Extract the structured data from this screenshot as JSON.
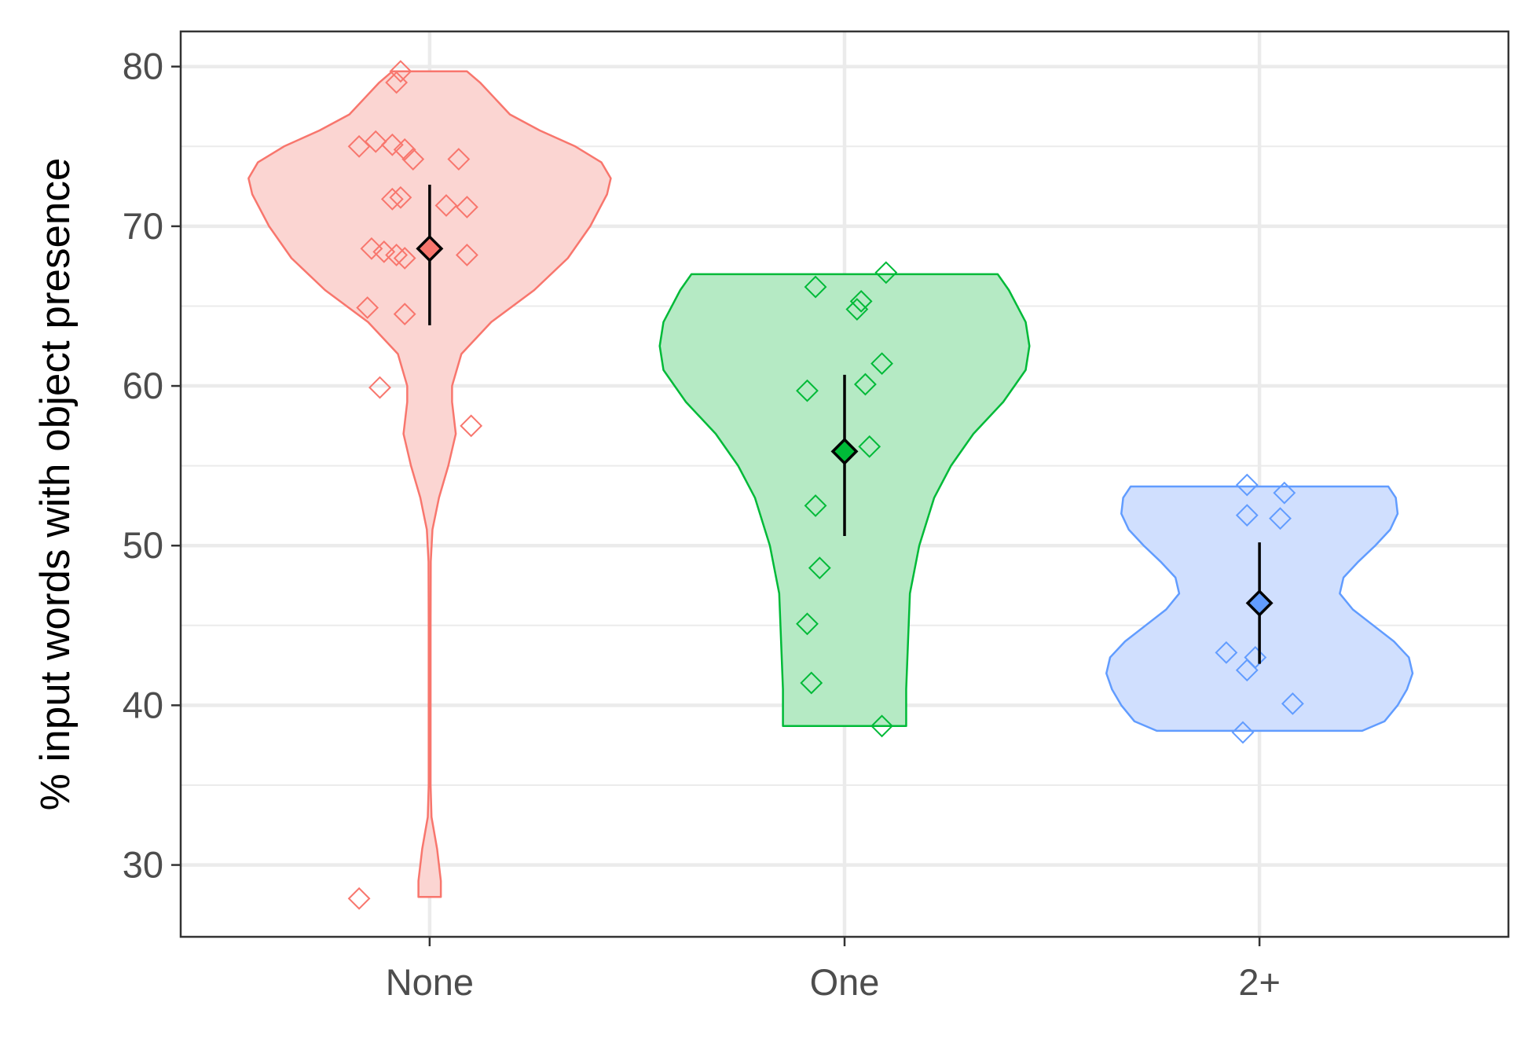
{
  "chart_data": {
    "type": "violin",
    "xlabel": "",
    "ylabel": "% input words with object presence",
    "ylim": [
      25.5,
      82.2
    ],
    "yticks": [
      30,
      40,
      50,
      60,
      70,
      80
    ],
    "categories": [
      "None",
      "One",
      "2+"
    ],
    "grid": true,
    "legend": "none",
    "groups": [
      {
        "category": "None",
        "color": "#F8766D",
        "fill": "#FBD5D2",
        "mean": 68.6,
        "ci": [
          63.8,
          72.6
        ],
        "range": [
          28.0,
          79.7
        ],
        "density": [
          [
            28.0,
            0.06
          ],
          [
            29,
            0.06
          ],
          [
            31,
            0.04
          ],
          [
            33,
            0.01
          ],
          [
            35,
            0.005
          ],
          [
            40,
            0.005
          ],
          [
            45,
            0.005
          ],
          [
            49,
            0.006
          ],
          [
            51,
            0.015
          ],
          [
            53,
            0.05
          ],
          [
            55,
            0.1
          ],
          [
            57,
            0.14
          ],
          [
            59,
            0.12
          ],
          [
            60,
            0.12
          ],
          [
            62,
            0.17
          ],
          [
            64,
            0.33
          ],
          [
            66,
            0.56
          ],
          [
            68,
            0.74
          ],
          [
            70,
            0.86
          ],
          [
            72,
            0.95
          ],
          [
            73,
            0.97
          ],
          [
            74,
            0.92
          ],
          [
            75,
            0.78
          ],
          [
            76,
            0.59
          ],
          [
            77,
            0.43
          ],
          [
            78,
            0.35
          ],
          [
            79,
            0.27
          ],
          [
            79.7,
            0.2
          ]
        ],
        "points": [
          [
            0.93,
            79.7
          ],
          [
            0.92,
            79.0
          ],
          [
            0.87,
            75.3
          ],
          [
            0.83,
            75.0
          ],
          [
            0.91,
            75.1
          ],
          [
            0.94,
            74.8
          ],
          [
            0.96,
            74.2
          ],
          [
            1.07,
            74.2
          ],
          [
            0.93,
            71.8
          ],
          [
            0.91,
            71.7
          ],
          [
            1.04,
            71.3
          ],
          [
            1.09,
            71.2
          ],
          [
            0.86,
            68.6
          ],
          [
            0.89,
            68.4
          ],
          [
            0.92,
            68.2
          ],
          [
            0.94,
            68.0
          ],
          [
            1.09,
            68.2
          ],
          [
            0.85,
            64.9
          ],
          [
            0.94,
            64.5
          ],
          [
            0.88,
            59.9
          ],
          [
            1.1,
            57.5
          ],
          [
            0.83,
            27.9
          ]
        ]
      },
      {
        "category": "One",
        "color": "#00BA38",
        "fill": "#B5EAC4",
        "mean": 55.9,
        "ci": [
          50.6,
          60.7
        ],
        "range": [
          38.7,
          67.0
        ],
        "density": [
          [
            38.7,
            0.33
          ],
          [
            41,
            0.33
          ],
          [
            44,
            0.34
          ],
          [
            47,
            0.35
          ],
          [
            50,
            0.4
          ],
          [
            53,
            0.48
          ],
          [
            55,
            0.57
          ],
          [
            57,
            0.69
          ],
          [
            59,
            0.85
          ],
          [
            61,
            0.97
          ],
          [
            62.5,
            0.99
          ],
          [
            64,
            0.97
          ],
          [
            66,
            0.88
          ],
          [
            67.0,
            0.82
          ]
        ],
        "points": [
          [
            1.93,
            66.2
          ],
          [
            2.04,
            65.3
          ],
          [
            2.03,
            64.8
          ],
          [
            2.1,
            67.1
          ],
          [
            2.09,
            61.4
          ],
          [
            2.05,
            60.1
          ],
          [
            1.91,
            59.7
          ],
          [
            2.06,
            56.2
          ],
          [
            1.93,
            52.5
          ],
          [
            1.94,
            48.6
          ],
          [
            1.91,
            45.1
          ],
          [
            1.92,
            41.4
          ],
          [
            2.09,
            38.7
          ]
        ]
      },
      {
        "category": "2+",
        "color": "#619CFF",
        "fill": "#D0DFFE",
        "mean": 46.4,
        "ci": [
          42.6,
          50.2
        ],
        "range": [
          38.4,
          53.7
        ],
        "density": [
          [
            38.4,
            0.55
          ],
          [
            39,
            0.67
          ],
          [
            40,
            0.74
          ],
          [
            41,
            0.79
          ],
          [
            42,
            0.82
          ],
          [
            43,
            0.8
          ],
          [
            44,
            0.72
          ],
          [
            45,
            0.61
          ],
          [
            46,
            0.5
          ],
          [
            47,
            0.43
          ],
          [
            48,
            0.45
          ],
          [
            49,
            0.53
          ],
          [
            50,
            0.62
          ],
          [
            51,
            0.7
          ],
          [
            52,
            0.74
          ],
          [
            53,
            0.73
          ],
          [
            53.7,
            0.69
          ]
        ],
        "points": [
          [
            2.97,
            53.8
          ],
          [
            3.06,
            53.3
          ],
          [
            2.97,
            51.9
          ],
          [
            3.05,
            51.7
          ],
          [
            2.92,
            43.3
          ],
          [
            2.99,
            43.0
          ],
          [
            2.97,
            42.2
          ],
          [
            3.08,
            40.1
          ],
          [
            2.96,
            38.3
          ]
        ]
      }
    ]
  }
}
